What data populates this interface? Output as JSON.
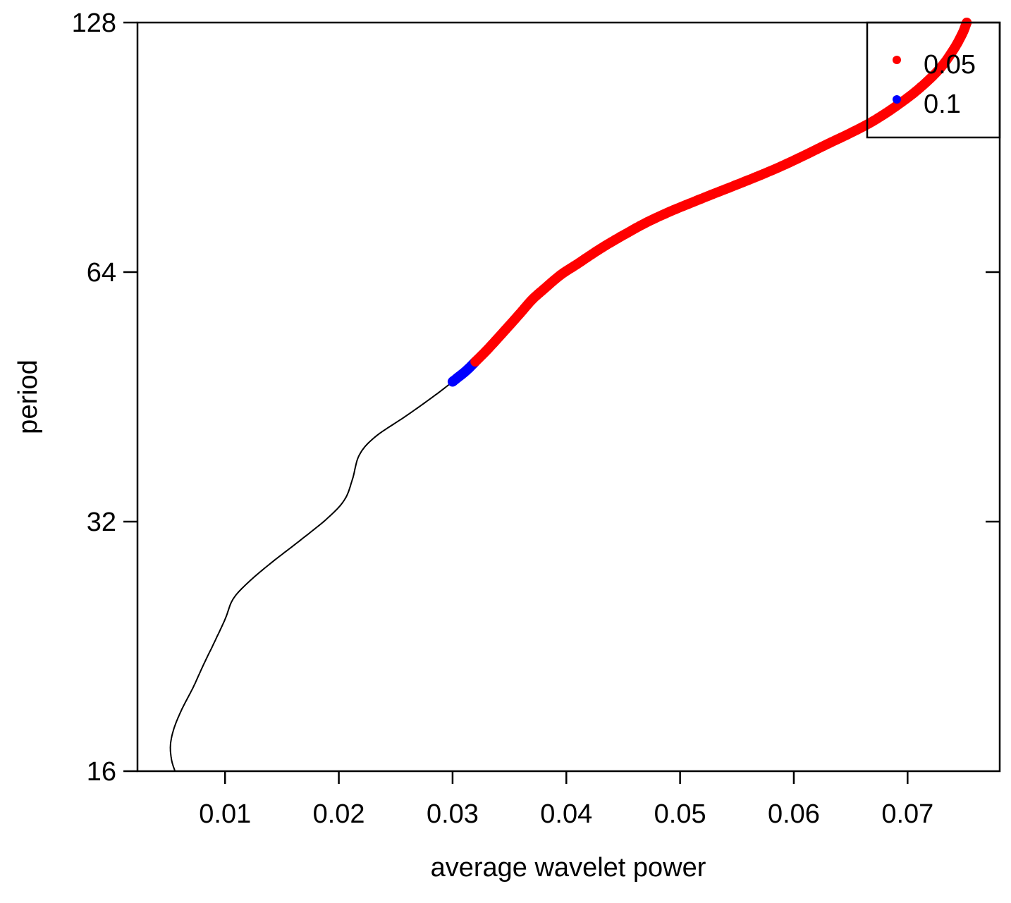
{
  "chart_data": {
    "type": "line",
    "title": "",
    "xlabel": "average wavelet power",
    "ylabel": "period",
    "xlim": [
      0.0023,
      0.0781
    ],
    "ylim": [
      16,
      128
    ],
    "y_scale": "log2",
    "x_ticks": [
      0.01,
      0.02,
      0.03,
      0.04,
      0.05,
      0.06,
      0.07
    ],
    "x_tick_labels": [
      "0.01",
      "0.02",
      "0.03",
      "0.04",
      "0.05",
      "0.06",
      "0.07"
    ],
    "y_ticks": [
      16,
      32,
      64,
      128
    ],
    "y_tick_labels": [
      "16",
      "32",
      "64",
      "128"
    ],
    "grid": false,
    "legend": {
      "position": "top-right",
      "entries": [
        {
          "label": "0.05",
          "color": "#ff0000"
        },
        {
          "label": "0.1",
          "color": "#0000ff"
        }
      ]
    },
    "series": [
      {
        "style": "line",
        "color": "#000000",
        "points": [
          [
            0.0056,
            16.0
          ],
          [
            0.0053,
            16.5
          ],
          [
            0.0052,
            17.2
          ],
          [
            0.0055,
            18.0
          ],
          [
            0.0062,
            19.0
          ],
          [
            0.0072,
            20.2
          ],
          [
            0.0081,
            21.5
          ],
          [
            0.009,
            22.8
          ],
          [
            0.01,
            24.4
          ],
          [
            0.0107,
            25.8
          ],
          [
            0.012,
            27.0
          ],
          [
            0.014,
            28.5
          ],
          [
            0.0165,
            30.3
          ],
          [
            0.019,
            32.3
          ],
          [
            0.0205,
            34.0
          ],
          [
            0.0212,
            36.0
          ],
          [
            0.0218,
            38.5
          ],
          [
            0.0232,
            40.5
          ],
          [
            0.026,
            43.0
          ],
          [
            0.0285,
            45.5
          ],
          [
            0.03,
            47.2
          ]
        ]
      },
      {
        "style": "points",
        "color": "#0000ff",
        "points": [
          [
            0.03,
            47.2
          ],
          [
            0.0305,
            47.8
          ],
          [
            0.031,
            48.4
          ],
          [
            0.0315,
            49.1
          ],
          [
            0.032,
            49.9
          ]
        ]
      },
      {
        "style": "points",
        "color": "#ff0000",
        "points": [
          [
            0.032,
            49.9
          ],
          [
            0.033,
            51.5
          ],
          [
            0.034,
            53.3
          ],
          [
            0.035,
            55.2
          ],
          [
            0.036,
            57.2
          ],
          [
            0.037,
            59.3
          ],
          [
            0.038,
            61.0
          ],
          [
            0.0395,
            63.5
          ],
          [
            0.041,
            65.5
          ],
          [
            0.043,
            68.3
          ],
          [
            0.045,
            70.9
          ],
          [
            0.047,
            73.4
          ],
          [
            0.049,
            75.6
          ],
          [
            0.051,
            77.6
          ],
          [
            0.053,
            79.6
          ],
          [
            0.055,
            81.6
          ],
          [
            0.057,
            83.7
          ],
          [
            0.059,
            86.0
          ],
          [
            0.061,
            88.6
          ],
          [
            0.063,
            91.4
          ],
          [
            0.065,
            94.2
          ],
          [
            0.067,
            97.4
          ],
          [
            0.069,
            101.5
          ],
          [
            0.071,
            106.5
          ],
          [
            0.0728,
            112.5
          ],
          [
            0.074,
            118.5
          ],
          [
            0.0748,
            124.0
          ],
          [
            0.0752,
            128.0
          ]
        ]
      }
    ]
  }
}
